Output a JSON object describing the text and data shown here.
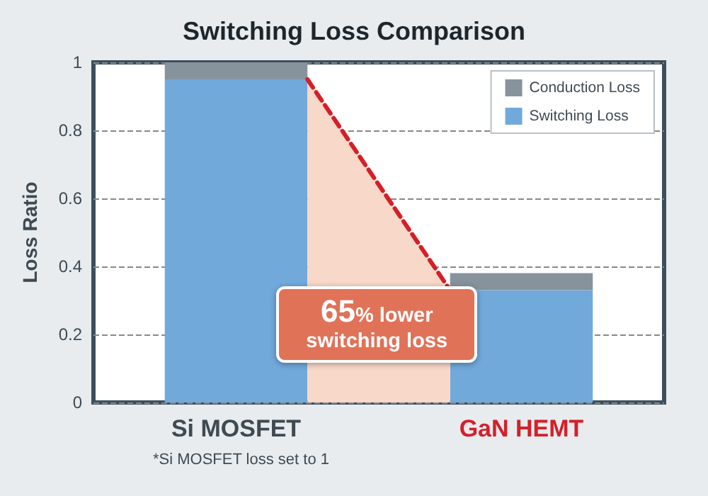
{
  "chart_data": {
    "type": "bar",
    "title": "Switching Loss Comparison",
    "ylabel": "Loss Ratio",
    "categories": [
      "Si MOSFET",
      "GaN HEMT"
    ],
    "stacked": true,
    "series": [
      {
        "name": "Switching Loss",
        "color": "#72a9db",
        "values": [
          0.95,
          0.33
        ]
      },
      {
        "name": "Conduction Loss",
        "color": "#87939c",
        "values": [
          0.05,
          0.05
        ]
      }
    ],
    "ylim": [
      0,
      1
    ],
    "yticks": [
      0,
      0.2,
      0.4,
      0.6,
      0.8,
      1
    ],
    "grid": "y",
    "legend": "top right",
    "annotations": [
      "65% lower switching loss",
      "*Si MOSFET loss set to 1"
    ]
  }
}
